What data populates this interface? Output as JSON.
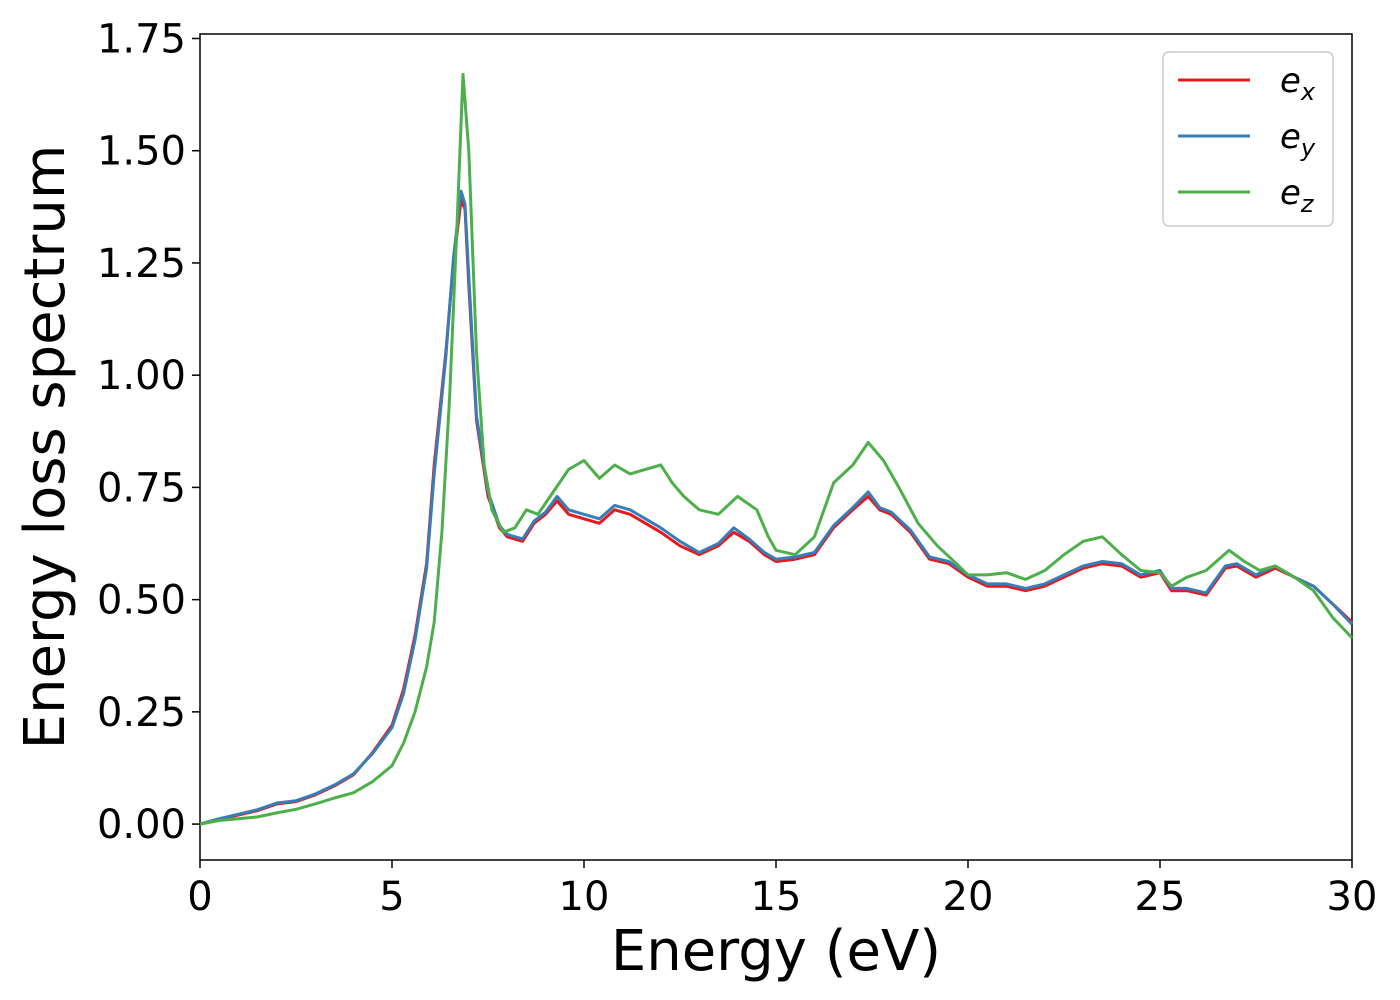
{
  "chart_data": {
    "type": "line",
    "xlabel": "Energy (eV)",
    "ylabel": "Energy loss spectrum",
    "xlim": [
      0,
      30
    ],
    "ylim": [
      -0.08,
      1.76
    ],
    "xticks": [
      "0",
      "5",
      "10",
      "15",
      "20",
      "25",
      "30"
    ],
    "yticks": [
      "0.00",
      "0.25",
      "0.50",
      "0.75",
      "1.00",
      "1.25",
      "1.50",
      "1.75"
    ],
    "grid": false,
    "legend_position": "top-right",
    "series": [
      {
        "name": "e",
        "subscript": "x",
        "color": "#e41a1c",
        "points": [
          [
            0,
            0.0
          ],
          [
            0.5,
            0.01
          ],
          [
            1,
            0.02
          ],
          [
            1.5,
            0.03
          ],
          [
            2,
            0.045
          ],
          [
            2.5,
            0.05
          ],
          [
            3,
            0.065
          ],
          [
            3.5,
            0.085
          ],
          [
            4,
            0.11
          ],
          [
            4.5,
            0.16
          ],
          [
            5,
            0.22
          ],
          [
            5.3,
            0.3
          ],
          [
            5.6,
            0.42
          ],
          [
            5.9,
            0.58
          ],
          [
            6.1,
            0.8
          ],
          [
            6.4,
            1.05
          ],
          [
            6.6,
            1.25
          ],
          [
            6.8,
            1.39
          ],
          [
            6.9,
            1.37
          ],
          [
            7.0,
            1.2
          ],
          [
            7.2,
            0.9
          ],
          [
            7.5,
            0.73
          ],
          [
            7.8,
            0.66
          ],
          [
            8.0,
            0.64
          ],
          [
            8.4,
            0.63
          ],
          [
            8.7,
            0.67
          ],
          [
            9.0,
            0.69
          ],
          [
            9.3,
            0.72
          ],
          [
            9.6,
            0.69
          ],
          [
            10.0,
            0.68
          ],
          [
            10.4,
            0.67
          ],
          [
            10.8,
            0.7
          ],
          [
            11.2,
            0.69
          ],
          [
            11.6,
            0.67
          ],
          [
            12.0,
            0.65
          ],
          [
            12.5,
            0.62
          ],
          [
            13.0,
            0.6
          ],
          [
            13.5,
            0.62
          ],
          [
            13.9,
            0.65
          ],
          [
            14.3,
            0.63
          ],
          [
            14.7,
            0.6
          ],
          [
            15.0,
            0.585
          ],
          [
            15.5,
            0.59
          ],
          [
            16.0,
            0.6
          ],
          [
            16.5,
            0.66
          ],
          [
            17.0,
            0.7
          ],
          [
            17.4,
            0.73
          ],
          [
            17.7,
            0.7
          ],
          [
            18.0,
            0.69
          ],
          [
            18.5,
            0.65
          ],
          [
            19.0,
            0.59
          ],
          [
            19.5,
            0.58
          ],
          [
            20.0,
            0.55
          ],
          [
            20.5,
            0.53
          ],
          [
            21.0,
            0.53
          ],
          [
            21.5,
            0.52
          ],
          [
            22.0,
            0.53
          ],
          [
            22.5,
            0.55
          ],
          [
            23.0,
            0.57
          ],
          [
            23.5,
            0.58
          ],
          [
            24.0,
            0.575
          ],
          [
            24.5,
            0.55
          ],
          [
            25.0,
            0.56
          ],
          [
            25.3,
            0.52
          ],
          [
            25.7,
            0.52
          ],
          [
            26.2,
            0.51
          ],
          [
            26.7,
            0.57
          ],
          [
            27.0,
            0.575
          ],
          [
            27.5,
            0.55
          ],
          [
            28.0,
            0.57
          ],
          [
            28.5,
            0.55
          ],
          [
            29.0,
            0.53
          ],
          [
            29.5,
            0.49
          ],
          [
            30.0,
            0.45
          ]
        ]
      },
      {
        "name": "e",
        "subscript": "y",
        "color": "#377eb8",
        "points": [
          [
            0,
            0.0
          ],
          [
            0.5,
            0.012
          ],
          [
            1,
            0.022
          ],
          [
            1.5,
            0.032
          ],
          [
            2,
            0.047
          ],
          [
            2.5,
            0.052
          ],
          [
            3,
            0.067
          ],
          [
            3.5,
            0.087
          ],
          [
            4,
            0.112
          ],
          [
            4.5,
            0.158
          ],
          [
            5,
            0.215
          ],
          [
            5.3,
            0.29
          ],
          [
            5.6,
            0.41
          ],
          [
            5.9,
            0.57
          ],
          [
            6.1,
            0.78
          ],
          [
            6.4,
            1.04
          ],
          [
            6.6,
            1.26
          ],
          [
            6.8,
            1.41
          ],
          [
            6.9,
            1.38
          ],
          [
            7.0,
            1.22
          ],
          [
            7.2,
            0.91
          ],
          [
            7.5,
            0.74
          ],
          [
            7.8,
            0.665
          ],
          [
            8.0,
            0.645
          ],
          [
            8.4,
            0.635
          ],
          [
            8.7,
            0.675
          ],
          [
            9.0,
            0.695
          ],
          [
            9.3,
            0.73
          ],
          [
            9.6,
            0.7
          ],
          [
            10.0,
            0.69
          ],
          [
            10.4,
            0.68
          ],
          [
            10.8,
            0.71
          ],
          [
            11.2,
            0.7
          ],
          [
            11.6,
            0.68
          ],
          [
            12.0,
            0.66
          ],
          [
            12.5,
            0.63
          ],
          [
            13.0,
            0.605
          ],
          [
            13.5,
            0.625
          ],
          [
            13.9,
            0.66
          ],
          [
            14.3,
            0.635
          ],
          [
            14.7,
            0.605
          ],
          [
            15.0,
            0.59
          ],
          [
            15.5,
            0.595
          ],
          [
            16.0,
            0.605
          ],
          [
            16.5,
            0.665
          ],
          [
            17.0,
            0.705
          ],
          [
            17.4,
            0.74
          ],
          [
            17.7,
            0.705
          ],
          [
            18.0,
            0.695
          ],
          [
            18.5,
            0.655
          ],
          [
            19.0,
            0.595
          ],
          [
            19.5,
            0.585
          ],
          [
            20.0,
            0.555
          ],
          [
            20.5,
            0.535
          ],
          [
            21.0,
            0.535
          ],
          [
            21.5,
            0.525
          ],
          [
            22.0,
            0.535
          ],
          [
            22.5,
            0.555
          ],
          [
            23.0,
            0.575
          ],
          [
            23.5,
            0.585
          ],
          [
            24.0,
            0.58
          ],
          [
            24.5,
            0.555
          ],
          [
            25.0,
            0.565
          ],
          [
            25.3,
            0.525
          ],
          [
            25.7,
            0.525
          ],
          [
            26.2,
            0.515
          ],
          [
            26.7,
            0.575
          ],
          [
            27.0,
            0.58
          ],
          [
            27.5,
            0.555
          ],
          [
            28.0,
            0.575
          ],
          [
            28.5,
            0.55
          ],
          [
            29.0,
            0.53
          ],
          [
            29.5,
            0.49
          ],
          [
            30.0,
            0.445
          ]
        ]
      },
      {
        "name": "e",
        "subscript": "z",
        "color": "#4daf4a",
        "points": [
          [
            0,
            0.0
          ],
          [
            0.5,
            0.008
          ],
          [
            1,
            0.012
          ],
          [
            1.5,
            0.016
          ],
          [
            2,
            0.025
          ],
          [
            2.5,
            0.033
          ],
          [
            3,
            0.045
          ],
          [
            3.5,
            0.058
          ],
          [
            4,
            0.07
          ],
          [
            4.5,
            0.095
          ],
          [
            5,
            0.13
          ],
          [
            5.3,
            0.18
          ],
          [
            5.6,
            0.25
          ],
          [
            5.9,
            0.35
          ],
          [
            6.1,
            0.45
          ],
          [
            6.3,
            0.65
          ],
          [
            6.5,
            0.95
          ],
          [
            6.7,
            1.35
          ],
          [
            6.85,
            1.67
          ],
          [
            7.0,
            1.5
          ],
          [
            7.2,
            1.05
          ],
          [
            7.4,
            0.8
          ],
          [
            7.6,
            0.7
          ],
          [
            7.9,
            0.65
          ],
          [
            8.2,
            0.66
          ],
          [
            8.5,
            0.7
          ],
          [
            8.8,
            0.69
          ],
          [
            9.2,
            0.74
          ],
          [
            9.6,
            0.79
          ],
          [
            10.0,
            0.81
          ],
          [
            10.4,
            0.77
          ],
          [
            10.8,
            0.8
          ],
          [
            11.2,
            0.78
          ],
          [
            11.6,
            0.79
          ],
          [
            12.0,
            0.8
          ],
          [
            12.3,
            0.76
          ],
          [
            12.6,
            0.73
          ],
          [
            13.0,
            0.7
          ],
          [
            13.5,
            0.69
          ],
          [
            14.0,
            0.73
          ],
          [
            14.5,
            0.7
          ],
          [
            14.8,
            0.64
          ],
          [
            15.0,
            0.61
          ],
          [
            15.5,
            0.6
          ],
          [
            16.0,
            0.64
          ],
          [
            16.5,
            0.76
          ],
          [
            17.0,
            0.8
          ],
          [
            17.4,
            0.85
          ],
          [
            17.8,
            0.81
          ],
          [
            18.2,
            0.75
          ],
          [
            18.7,
            0.67
          ],
          [
            19.2,
            0.62
          ],
          [
            19.7,
            0.58
          ],
          [
            20.0,
            0.555
          ],
          [
            20.5,
            0.555
          ],
          [
            21.0,
            0.56
          ],
          [
            21.5,
            0.545
          ],
          [
            22.0,
            0.565
          ],
          [
            22.5,
            0.6
          ],
          [
            23.0,
            0.63
          ],
          [
            23.5,
            0.64
          ],
          [
            24.0,
            0.6
          ],
          [
            24.5,
            0.565
          ],
          [
            25.0,
            0.56
          ],
          [
            25.3,
            0.53
          ],
          [
            25.7,
            0.55
          ],
          [
            26.2,
            0.565
          ],
          [
            26.8,
            0.61
          ],
          [
            27.2,
            0.585
          ],
          [
            27.6,
            0.565
          ],
          [
            28.0,
            0.575
          ],
          [
            28.5,
            0.55
          ],
          [
            29.0,
            0.52
          ],
          [
            29.5,
            0.46
          ],
          [
            30.0,
            0.415
          ]
        ]
      }
    ]
  }
}
